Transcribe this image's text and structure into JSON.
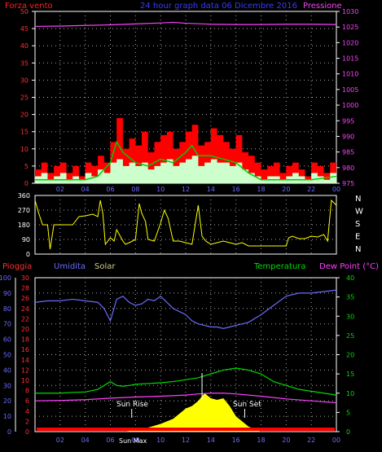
{
  "header": {
    "left_label": "Forza vento",
    "center_title": "24 hour graph data  06 Dicembre 2016",
    "right_label": "Pressione",
    "left_color": "#ff2020",
    "center_color": "#3b3bff",
    "right_color": "#ff40ff"
  },
  "wind_direction_labels": [
    "N",
    "W",
    "S",
    "E",
    "N"
  ],
  "bottom_labels": {
    "pioggia": "Pioggia",
    "umidita": "Umidita",
    "solar": "Solar",
    "temperatura": "Temperatura",
    "dew_point": "Dew Point (°C)",
    "sun_rise": "Sun Rise",
    "sun_set": "Sun Set",
    "sun_max": "Sun Max"
  },
  "colors": {
    "wind_gust": "#ff0000",
    "wind_avg": "#ccffcc",
    "wind_trend": "#00cc00",
    "pressure": "#ff40ff",
    "wind_dir": "#ffff00",
    "humidity": "#6b6bff",
    "temperature": "#00dd00",
    "dewpoint": "#ff40ff",
    "solar": "#ffff00",
    "rain": "#ff0000",
    "grid": "#aaaaaa",
    "wind_axis": "#ff3030",
    "pressure_axis": "#ff40ff",
    "humidity_axis": "#6b6bff",
    "rain_axis": "#ff3030",
    "temp_axis": "#00dd00",
    "time_axis": "#6b6bff",
    "white_axis": "#ffffff"
  },
  "chart_data": [
    {
      "type": "area",
      "title": "24 hour graph data  06 Dicembre 2016",
      "x_ticks": [
        "02",
        "04",
        "06",
        "08",
        "10",
        "12",
        "14",
        "16",
        "18",
        "20",
        "22",
        "00"
      ],
      "x_hours": [
        2,
        4,
        6,
        8,
        10,
        12,
        14,
        16,
        18,
        20,
        22,
        24
      ],
      "xlim": [
        0,
        24
      ],
      "y_left": {
        "label": "Forza vento",
        "range": [
          0,
          50
        ],
        "ticks": [
          0,
          5,
          10,
          15,
          20,
          25,
          30,
          35,
          40,
          45,
          50
        ]
      },
      "y_right": {
        "label": "Pressione",
        "range": [
          975,
          1030
        ],
        "ticks": [
          975,
          980,
          985,
          990,
          995,
          1000,
          1005,
          1010,
          1015,
          1020,
          1025,
          1030
        ]
      },
      "series": [
        {
          "name": "gust",
          "axis": "left",
          "x": [
            0,
            0.5,
            1,
            1.5,
            2,
            2.5,
            3,
            3.5,
            4,
            4.5,
            5,
            5.5,
            6,
            6.5,
            7,
            7.5,
            8,
            8.5,
            9,
            9.5,
            10,
            10.5,
            11,
            11.5,
            12,
            12.5,
            13,
            13.5,
            14,
            14.5,
            15,
            15.5,
            16,
            16.5,
            17,
            17.5,
            18,
            18.5,
            19,
            19.5,
            20,
            20.5,
            21,
            21.5,
            22,
            22.5,
            23,
            23.5,
            24
          ],
          "values": [
            4,
            6,
            3,
            5,
            6,
            3,
            5,
            2,
            6,
            5,
            8,
            6,
            12,
            19,
            10,
            13,
            11,
            15,
            9,
            12,
            14,
            15,
            10,
            12,
            15,
            17,
            11,
            12,
            16,
            14,
            12,
            10,
            14,
            9,
            8,
            6,
            4,
            5,
            6,
            3,
            5,
            6,
            4,
            2,
            6,
            5,
            3,
            6,
            7
          ]
        },
        {
          "name": "average",
          "axis": "left",
          "x": [
            0,
            0.5,
            1,
            1.5,
            2,
            2.5,
            3,
            3.5,
            4,
            4.5,
            5,
            5.5,
            6,
            6.5,
            7,
            7.5,
            8,
            8.5,
            9,
            9.5,
            10,
            10.5,
            11,
            11.5,
            12,
            12.5,
            13,
            13.5,
            14,
            14.5,
            15,
            15.5,
            16,
            16.5,
            17,
            17.5,
            18,
            18.5,
            19,
            19.5,
            20,
            20.5,
            21,
            21.5,
            22,
            22.5,
            23,
            23.5,
            24
          ],
          "values": [
            2,
            3,
            1,
            2,
            3,
            1,
            2,
            1,
            3,
            2,
            4,
            3,
            6,
            7,
            5,
            6,
            5,
            6,
            4,
            5,
            6,
            7,
            5,
            6,
            7,
            8,
            5,
            6,
            7,
            6,
            6,
            5,
            6,
            4,
            3,
            2,
            1,
            2,
            2,
            1,
            2,
            3,
            2,
            1,
            3,
            2,
            1,
            3,
            3
          ]
        },
        {
          "name": "trend",
          "axis": "left",
          "x": [
            0,
            2,
            4,
            5,
            6,
            6.5,
            7,
            8,
            9,
            10,
            11,
            12,
            12.5,
            13,
            14,
            15,
            16,
            17,
            18,
            20,
            22,
            24
          ],
          "values": [
            1,
            1,
            1,
            2,
            6,
            12,
            9,
            6,
            5,
            7,
            6,
            9,
            11,
            8,
            8,
            7,
            6,
            3,
            1,
            1,
            1,
            2
          ]
        },
        {
          "name": "pressure",
          "axis": "right",
          "x": [
            0,
            2,
            4,
            6,
            8,
            10,
            11,
            12,
            14,
            16,
            18,
            20,
            22,
            24
          ],
          "values": [
            1025.2,
            1025.3,
            1025.5,
            1025.7,
            1026.0,
            1026.3,
            1026.5,
            1026.2,
            1025.9,
            1025.8,
            1025.8,
            1025.9,
            1025.9,
            1025.8
          ]
        }
      ]
    },
    {
      "type": "line",
      "x_ticks": [
        "02",
        "04",
        "06",
        "08",
        "10",
        "12",
        "14",
        "16",
        "18",
        "20",
        "22",
        "00"
      ],
      "xlim": [
        0,
        24
      ],
      "y_left": {
        "range": [
          0,
          360
        ],
        "ticks": [
          0,
          90,
          180,
          270,
          360
        ]
      },
      "y_right_labels": [
        "N",
        "W",
        "S",
        "E",
        "N"
      ],
      "series": [
        {
          "name": "wind_direction",
          "x": [
            0,
            0.3,
            0.6,
            1,
            1.2,
            1.5,
            2,
            3,
            3.5,
            4,
            4.3,
            4.6,
            5,
            5.2,
            5.4,
            5.6,
            6,
            6.3,
            6.5,
            7,
            7.2,
            7.5,
            8,
            8.3,
            8.5,
            8.8,
            9,
            9.5,
            10,
            10.3,
            10.6,
            11,
            11.5,
            12,
            12.5,
            13,
            13.3,
            13.6,
            14,
            14.5,
            15,
            15.5,
            16,
            16.5,
            17,
            18,
            19,
            20,
            20.2,
            20.5,
            21,
            21.5,
            22,
            22.5,
            23,
            23.3,
            23.6,
            24
          ],
          "values": [
            330,
            250,
            180,
            180,
            30,
            180,
            180,
            180,
            230,
            235,
            240,
            245,
            230,
            330,
            250,
            60,
            100,
            80,
            150,
            80,
            60,
            70,
            90,
            310,
            250,
            200,
            90,
            80,
            190,
            270,
            220,
            80,
            80,
            70,
            60,
            300,
            110,
            80,
            60,
            70,
            80,
            70,
            60,
            70,
            50,
            50,
            50,
            50,
            100,
            110,
            95,
            95,
            110,
            105,
            120,
            80,
            330,
            300
          ]
        }
      ]
    },
    {
      "type": "line",
      "x_ticks": [
        "02",
        "04",
        "06",
        "08",
        "10",
        "12",
        "14",
        "16",
        "18",
        "20",
        "22",
        "00"
      ],
      "xlim": [
        0,
        24
      ],
      "axes": {
        "pioggia": {
          "label": "Pioggia",
          "range": [
            0,
            30
          ],
          "ticks": [
            0,
            2,
            4,
            6,
            8,
            10,
            12,
            14,
            16,
            18,
            20,
            22,
            24,
            26,
            28,
            30
          ]
        },
        "umidita": {
          "label": "Umidita",
          "range": [
            0,
            100
          ],
          "ticks": [
            0,
            10,
            20,
            30,
            40,
            50,
            60,
            70,
            80,
            90,
            100
          ]
        },
        "temperatura": {
          "label": "Temperatura / Dew Point (°C)",
          "range": [
            0,
            40
          ],
          "ticks": [
            0,
            5,
            10,
            15,
            20,
            25,
            30,
            35,
            40
          ]
        }
      },
      "annotations": [
        "Sun Rise",
        "Sun Set",
        "Sun Max"
      ],
      "series": [
        {
          "name": "Umidita",
          "axis": "umidita",
          "x": [
            0,
            1,
            2,
            3,
            4,
            5,
            5.5,
            6,
            6.5,
            7,
            7.5,
            8,
            8.5,
            9,
            9.5,
            10,
            10.5,
            11,
            11.5,
            12,
            12.5,
            13,
            13.5,
            14,
            14.5,
            15,
            15.5,
            16,
            17,
            18,
            19,
            20,
            21,
            22,
            23,
            24
          ],
          "values": [
            84,
            85,
            85,
            86,
            85,
            84,
            80,
            72,
            86,
            88,
            84,
            82,
            83,
            86,
            85,
            88,
            84,
            80,
            78,
            76,
            72,
            70,
            69,
            68,
            68,
            67,
            68,
            69,
            71,
            76,
            82,
            88,
            90,
            90,
            91,
            92
          ]
        },
        {
          "name": "Temperatura",
          "axis": "temperatura",
          "x": [
            0,
            1,
            2,
            3,
            4,
            5,
            5.5,
            6,
            6.5,
            7,
            7.5,
            8,
            9,
            10,
            11,
            12,
            13,
            14,
            15,
            16,
            17,
            18,
            19,
            20,
            21,
            22,
            23,
            24
          ],
          "values": [
            10,
            10,
            10,
            10.2,
            10.3,
            11,
            12,
            13,
            12,
            11.8,
            12,
            12.3,
            12.5,
            12.7,
            13,
            13.5,
            14,
            15,
            16,
            16.5,
            16,
            15,
            13,
            12,
            11,
            10.5,
            10,
            9.5
          ]
        },
        {
          "name": "Dew Point",
          "axis": "temperatura",
          "x": [
            0,
            2,
            4,
            6,
            8,
            10,
            12,
            13,
            14,
            15,
            16,
            18,
            20,
            22,
            24
          ],
          "values": [
            8,
            8.1,
            8.3,
            8.7,
            9,
            9.2,
            9.5,
            9.8,
            10,
            10,
            9.8,
            9.2,
            8.5,
            8,
            7.5
          ]
        },
        {
          "name": "Solar",
          "axis": "pioggia",
          "x": [
            0,
            7,
            8,
            9,
            10,
            11,
            11.5,
            12,
            12.5,
            13,
            13.5,
            14,
            14.5,
            15,
            15.5,
            16,
            17,
            18,
            24
          ],
          "values": [
            0,
            0,
            0.3,
            0.8,
            1.5,
            2.5,
            3.5,
            4.5,
            5,
            6,
            7.5,
            6.5,
            6.2,
            6.5,
            5,
            3,
            1,
            0,
            0
          ]
        },
        {
          "name": "Pioggia",
          "axis": "pioggia",
          "x": [
            0,
            24
          ],
          "values": [
            0,
            0
          ]
        }
      ]
    }
  ]
}
